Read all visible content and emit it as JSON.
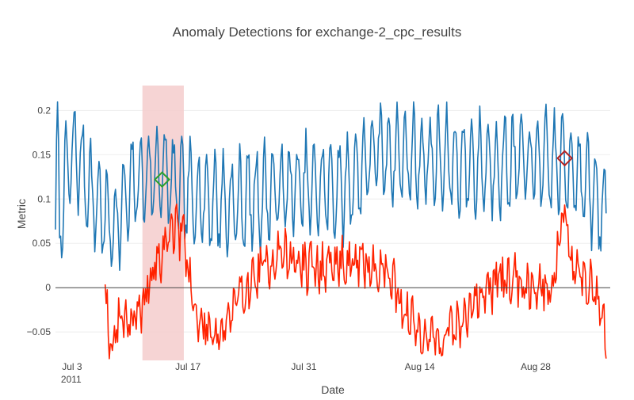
{
  "chart_data": {
    "type": "line",
    "title": "Anomaly Detections for exchange-2_cpc_results",
    "xlabel": "Date",
    "ylabel": "Metric",
    "x_range": [
      "2011-07-01",
      "2011-09-06"
    ],
    "ylim": [
      -0.082,
      0.228
    ],
    "x_ticks": [
      {
        "date": "2011-07-03",
        "label": "Jul 3",
        "sublabel": "2011"
      },
      {
        "date": "2011-07-17",
        "label": "Jul 17",
        "sublabel": ""
      },
      {
        "date": "2011-07-31",
        "label": "Jul 31",
        "sublabel": ""
      },
      {
        "date": "2011-08-14",
        "label": "Aug 14",
        "sublabel": ""
      },
      {
        "date": "2011-08-28",
        "label": "Aug 28",
        "sublabel": ""
      }
    ],
    "y_ticks": [
      {
        "value": -0.05,
        "label": "−0.05"
      },
      {
        "value": 0,
        "label": "0"
      },
      {
        "value": 0.05,
        "label": "0.05"
      },
      {
        "value": 0.1,
        "label": "0.1"
      },
      {
        "value": 0.15,
        "label": "0.15"
      },
      {
        "value": 0.2,
        "label": "0.2"
      }
    ],
    "grid": true,
    "zero_line": true,
    "series": [
      {
        "color": "#1f77b4",
        "role": "metric",
        "range": {
          "start": "2011-07-01",
          "end": "2011-09-05T12:00"
        },
        "base": 0.085,
        "daily_amplitude": 0.05,
        "noise": 0.018,
        "seed": 7,
        "points": [
          {
            "x": "2011-07-01T00:00",
            "y": 0.065
          },
          {
            "x": "2011-07-01T06:00",
            "y": 0.226
          },
          {
            "x": "2011-07-01T12:00",
            "y": 0.06
          },
          {
            "x": "2011-07-02T12:00",
            "y": 0.19
          },
          {
            "x": "2011-07-03T12:00",
            "y": 0.22
          },
          {
            "x": "2011-07-05T12:00",
            "y": 0.12
          },
          {
            "x": "2011-07-08T00:00",
            "y": 0.05
          },
          {
            "x": "2011-07-10T12:00",
            "y": 0.15
          },
          {
            "x": "2011-07-13T12:00",
            "y": 0.18
          },
          {
            "x": "2011-07-16T12:00",
            "y": 0.13
          },
          {
            "x": "2011-07-22T00:00",
            "y": 0.1
          },
          {
            "x": "2011-07-29T00:00",
            "y": 0.14
          },
          {
            "x": "2011-08-05T00:00",
            "y": 0.14
          },
          {
            "x": "2011-08-08T12:00",
            "y": 0.22
          },
          {
            "x": "2011-08-13T00:00",
            "y": 0.21
          },
          {
            "x": "2011-08-20T00:00",
            "y": 0.19
          },
          {
            "x": "2011-08-27T00:00",
            "y": 0.2
          },
          {
            "x": "2011-09-01T12:00",
            "y": 0.19
          },
          {
            "x": "2011-09-05T12:00",
            "y": 0.08
          }
        ]
      },
      {
        "color": "#ff2200",
        "role": "residual",
        "range": {
          "start": "2011-07-07T00:00",
          "end": "2011-09-05T12:00"
        },
        "base": 0.0,
        "daily_amplitude": 0.012,
        "noise": 0.022,
        "seed": 19,
        "points": [
          {
            "x": "2011-07-07T00:00",
            "y": 0.015
          },
          {
            "x": "2011-07-07T12:00",
            "y": -0.07
          },
          {
            "x": "2011-07-09T00:00",
            "y": -0.03
          },
          {
            "x": "2011-07-11T00:00",
            "y": -0.04
          },
          {
            "x": "2011-07-12T00:00",
            "y": 0.0
          },
          {
            "x": "2011-07-14T00:00",
            "y": 0.04
          },
          {
            "x": "2011-07-15T00:00",
            "y": 0.07
          },
          {
            "x": "2011-07-16T12:00",
            "y": 0.06
          },
          {
            "x": "2011-07-18T00:00",
            "y": -0.04
          },
          {
            "x": "2011-07-21T00:00",
            "y": -0.05
          },
          {
            "x": "2011-07-24T00:00",
            "y": 0.0
          },
          {
            "x": "2011-07-28T00:00",
            "y": 0.04
          },
          {
            "x": "2011-08-01T00:00",
            "y": 0.02
          },
          {
            "x": "2011-08-05T00:00",
            "y": 0.03
          },
          {
            "x": "2011-08-10T00:00",
            "y": 0.02
          },
          {
            "x": "2011-08-13T00:00",
            "y": -0.04
          },
          {
            "x": "2011-08-16T00:00",
            "y": -0.06
          },
          {
            "x": "2011-08-19T00:00",
            "y": -0.04
          },
          {
            "x": "2011-08-22T00:00",
            "y": 0.0
          },
          {
            "x": "2011-08-25T00:00",
            "y": 0.01
          },
          {
            "x": "2011-08-30T00:00",
            "y": 0.0
          },
          {
            "x": "2011-08-31T12:00",
            "y": 0.1
          },
          {
            "x": "2011-09-01T12:00",
            "y": 0.02
          },
          {
            "x": "2011-09-04T00:00",
            "y": 0.0
          },
          {
            "x": "2011-09-05T12:00",
            "y": -0.055
          }
        ]
      }
    ],
    "anomaly_region": {
      "start": "2011-07-11T12:00",
      "end": "2011-07-16T12:00",
      "color": "#f4cccc"
    },
    "markers": [
      {
        "x": "2011-07-13T21:00",
        "y": 0.122,
        "color": "#2ca02c",
        "shape": "diamond-open"
      },
      {
        "x": "2011-08-31T12:00",
        "y": 0.146,
        "color": "#b22222",
        "shape": "diamond-open"
      }
    ]
  }
}
